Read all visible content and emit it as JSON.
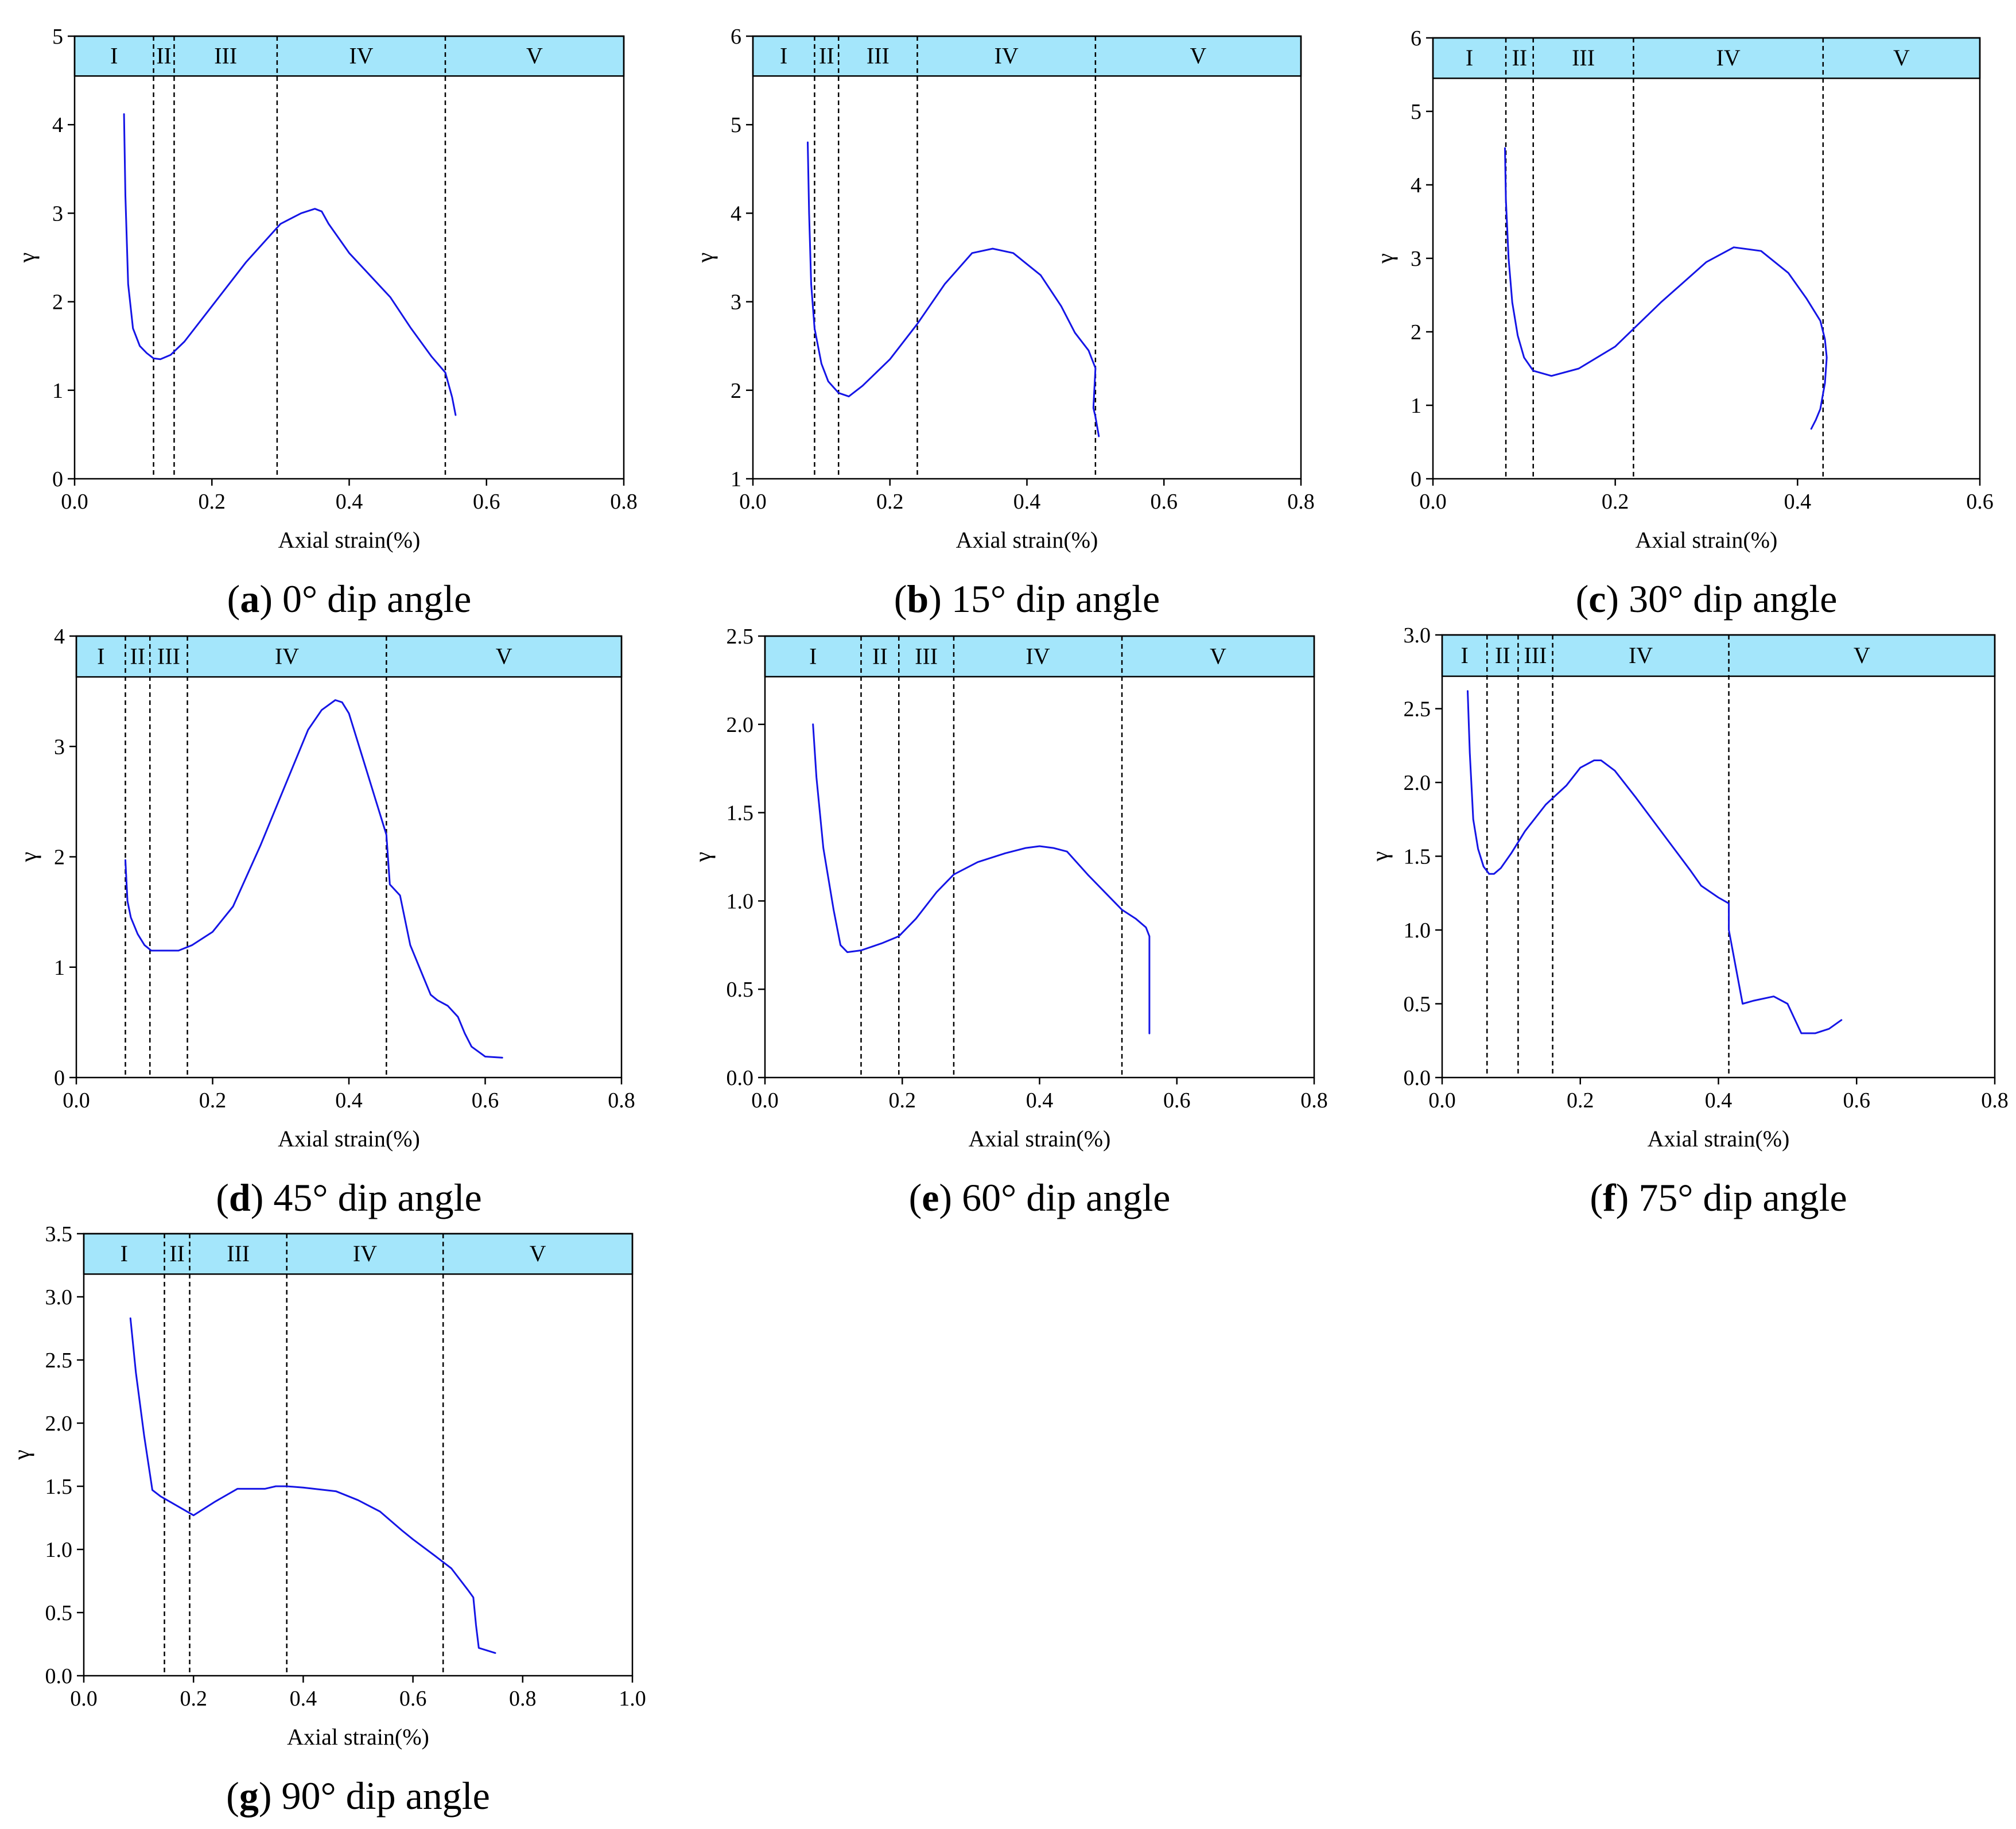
{
  "figure": {
    "line_color": "#1515e6",
    "band_color": "#a4e6fb",
    "stage_labels": [
      "I",
      "II",
      "III",
      "IV",
      "V"
    ]
  },
  "chart_data": [
    {
      "id": "a",
      "type": "line",
      "caption_letter": "a",
      "caption_open": "(",
      "caption_close": ")",
      "caption_text": " 0° dip angle",
      "xlabel": "Axial strain(%)",
      "ylabel": "γ",
      "xlim": [
        0.0,
        0.8
      ],
      "ylim": [
        0,
        5
      ],
      "xticks": [
        0.0,
        0.2,
        0.4,
        0.6,
        0.8
      ],
      "xtick_labels": [
        "0.0",
        "0.2",
        "0.4",
        "0.6",
        "0.8"
      ],
      "yticks": [
        0,
        1,
        2,
        3,
        4,
        5
      ],
      "ytick_labels": [
        "0",
        "1",
        "2",
        "3",
        "4",
        "5"
      ],
      "band_bottom": 4.55,
      "stage_boundaries": [
        0.115,
        0.145,
        0.295,
        0.54
      ],
      "x": [
        0.072,
        0.074,
        0.078,
        0.085,
        0.095,
        0.105,
        0.115,
        0.125,
        0.14,
        0.16,
        0.2,
        0.25,
        0.3,
        0.33,
        0.35,
        0.36,
        0.37,
        0.4,
        0.43,
        0.46,
        0.49,
        0.52,
        0.54,
        0.55,
        0.555
      ],
      "y": [
        4.12,
        3.2,
        2.2,
        1.7,
        1.5,
        1.42,
        1.36,
        1.35,
        1.4,
        1.55,
        1.95,
        2.45,
        2.88,
        3.0,
        3.05,
        3.02,
        2.88,
        2.55,
        2.3,
        2.05,
        1.7,
        1.38,
        1.2,
        0.92,
        0.72
      ]
    },
    {
      "id": "b",
      "type": "line",
      "caption_letter": "b",
      "caption_open": "(",
      "caption_close": ")",
      "caption_text": " 15° dip angle",
      "xlabel": "Axial strain(%)",
      "ylabel": "γ",
      "xlim": [
        0.0,
        0.8
      ],
      "ylim": [
        1,
        6
      ],
      "xticks": [
        0.0,
        0.2,
        0.4,
        0.6,
        0.8
      ],
      "xtick_labels": [
        "0.0",
        "0.2",
        "0.4",
        "0.6",
        "0.8"
      ],
      "yticks": [
        1,
        2,
        3,
        4,
        5,
        6
      ],
      "ytick_labels": [
        "1",
        "2",
        "3",
        "4",
        "5",
        "6"
      ],
      "band_bottom": 5.55,
      "stage_boundaries": [
        0.09,
        0.125,
        0.24,
        0.5
      ],
      "x": [
        0.08,
        0.082,
        0.085,
        0.09,
        0.1,
        0.11,
        0.125,
        0.14,
        0.16,
        0.2,
        0.24,
        0.28,
        0.32,
        0.35,
        0.38,
        0.42,
        0.45,
        0.47,
        0.49,
        0.5,
        0.497,
        0.5,
        0.505
      ],
      "y": [
        4.8,
        4.0,
        3.2,
        2.7,
        2.3,
        2.1,
        1.97,
        1.93,
        2.05,
        2.35,
        2.75,
        3.2,
        3.55,
        3.6,
        3.55,
        3.3,
        2.95,
        2.65,
        2.45,
        2.25,
        1.8,
        1.7,
        1.48
      ]
    },
    {
      "id": "c",
      "type": "line",
      "caption_letter": "c",
      "caption_open": "(",
      "caption_close": ")",
      "caption_text": " 30° dip angle",
      "xlabel": "Axial strain(%)",
      "ylabel": "γ",
      "xlim": [
        0.0,
        0.6
      ],
      "ylim": [
        0,
        6
      ],
      "xticks": [
        0.0,
        0.2,
        0.4,
        0.6
      ],
      "xtick_labels": [
        "0.0",
        "0.2",
        "0.4",
        "0.6"
      ],
      "yticks": [
        0,
        1,
        2,
        3,
        4,
        5,
        6
      ],
      "ytick_labels": [
        "0",
        "1",
        "2",
        "3",
        "4",
        "5",
        "6"
      ],
      "band_bottom": 5.45,
      "stage_boundaries": [
        0.08,
        0.11,
        0.22,
        0.428
      ],
      "x": [
        0.079,
        0.08,
        0.083,
        0.087,
        0.093,
        0.1,
        0.11,
        0.13,
        0.16,
        0.2,
        0.25,
        0.3,
        0.33,
        0.36,
        0.39,
        0.41,
        0.425,
        0.43,
        0.432,
        0.43,
        0.425,
        0.42,
        0.415
      ],
      "y": [
        4.5,
        3.8,
        3.0,
        2.4,
        1.95,
        1.65,
        1.47,
        1.4,
        1.5,
        1.8,
        2.4,
        2.95,
        3.15,
        3.1,
        2.8,
        2.45,
        2.15,
        1.9,
        1.65,
        1.3,
        0.95,
        0.8,
        0.68
      ]
    },
    {
      "id": "d",
      "type": "line",
      "caption_letter": "d",
      "caption_open": "(",
      "caption_close": ")",
      "caption_text": " 45° dip angle",
      "xlabel": "Axial strain(%)",
      "ylabel": "γ",
      "xlim": [
        0.0,
        0.8
      ],
      "ylim": [
        0,
        4
      ],
      "xticks": [
        0.0,
        0.2,
        0.4,
        0.6,
        0.8
      ],
      "xtick_labels": [
        "0.0",
        "0.2",
        "0.4",
        "0.6",
        "0.8"
      ],
      "yticks": [
        0,
        1,
        2,
        3,
        4
      ],
      "ytick_labels": [
        "0",
        "1",
        "2",
        "3",
        "4"
      ],
      "band_bottom": 3.63,
      "stage_boundaries": [
        0.072,
        0.108,
        0.163,
        0.455
      ],
      "x": [
        0.072,
        0.075,
        0.08,
        0.09,
        0.1,
        0.11,
        0.13,
        0.15,
        0.17,
        0.2,
        0.23,
        0.27,
        0.31,
        0.34,
        0.36,
        0.38,
        0.39,
        0.4,
        0.42,
        0.44,
        0.455,
        0.46,
        0.475,
        0.48,
        0.49,
        0.51,
        0.52,
        0.53,
        0.545,
        0.56,
        0.57,
        0.58,
        0.6,
        0.625
      ],
      "y": [
        1.97,
        1.6,
        1.45,
        1.3,
        1.2,
        1.15,
        1.15,
        1.15,
        1.2,
        1.32,
        1.55,
        2.1,
        2.7,
        3.15,
        3.33,
        3.42,
        3.4,
        3.3,
        2.9,
        2.5,
        2.2,
        1.75,
        1.65,
        1.5,
        1.2,
        0.9,
        0.75,
        0.7,
        0.65,
        0.55,
        0.4,
        0.28,
        0.19,
        0.18
      ]
    },
    {
      "id": "e",
      "type": "line",
      "caption_letter": "e",
      "caption_open": "(",
      "caption_close": ")",
      "caption_text": " 60° dip angle",
      "xlabel": "Axial strain(%)",
      "ylabel": "γ",
      "xlim": [
        0.0,
        0.8
      ],
      "ylim": [
        0.0,
        2.5
      ],
      "xticks": [
        0.0,
        0.2,
        0.4,
        0.6,
        0.8
      ],
      "xtick_labels": [
        "0.0",
        "0.2",
        "0.4",
        "0.6",
        "0.8"
      ],
      "yticks": [
        0.0,
        0.5,
        1.0,
        1.5,
        2.0,
        2.5
      ],
      "ytick_labels": [
        "0.0",
        "0.5",
        "1.0",
        "1.5",
        "2.0",
        "2.5"
      ],
      "band_bottom": 2.27,
      "stage_boundaries": [
        0.14,
        0.195,
        0.275,
        0.52
      ],
      "x": [
        0.07,
        0.075,
        0.085,
        0.1,
        0.11,
        0.12,
        0.14,
        0.17,
        0.195,
        0.22,
        0.25,
        0.275,
        0.31,
        0.35,
        0.38,
        0.4,
        0.42,
        0.44,
        0.47,
        0.5,
        0.52,
        0.54,
        0.555,
        0.56,
        0.56,
        0.56
      ],
      "y": [
        2.0,
        1.7,
        1.3,
        0.95,
        0.75,
        0.71,
        0.72,
        0.76,
        0.8,
        0.9,
        1.05,
        1.15,
        1.22,
        1.27,
        1.3,
        1.31,
        1.3,
        1.28,
        1.15,
        1.03,
        0.95,
        0.9,
        0.85,
        0.8,
        0.5,
        0.25
      ]
    },
    {
      "id": "f",
      "type": "line",
      "caption_letter": "f",
      "caption_open": "(",
      "caption_close": ")",
      "caption_text": " 75° dip angle",
      "xlabel": "Axial strain(%)",
      "ylabel": "γ",
      "xlim": [
        0.0,
        0.8
      ],
      "ylim": [
        0.0,
        3.0
      ],
      "xticks": [
        0.0,
        0.2,
        0.4,
        0.6,
        0.8
      ],
      "xtick_labels": [
        "0.0",
        "0.2",
        "0.4",
        "0.6",
        "0.8"
      ],
      "yticks": [
        0.0,
        0.5,
        1.0,
        1.5,
        2.0,
        2.5,
        3.0
      ],
      "ytick_labels": [
        "0.0",
        "0.5",
        "1.0",
        "1.5",
        "2.0",
        "2.5",
        "3.0"
      ],
      "band_bottom": 2.72,
      "stage_boundaries": [
        0.065,
        0.11,
        0.16,
        0.415
      ],
      "x": [
        0.037,
        0.04,
        0.045,
        0.052,
        0.06,
        0.068,
        0.075,
        0.085,
        0.1,
        0.12,
        0.15,
        0.18,
        0.2,
        0.22,
        0.23,
        0.25,
        0.28,
        0.32,
        0.36,
        0.375,
        0.4,
        0.415,
        0.415,
        0.425,
        0.435,
        0.45,
        0.48,
        0.5,
        0.51,
        0.52,
        0.54,
        0.56,
        0.578
      ],
      "y": [
        2.62,
        2.2,
        1.75,
        1.55,
        1.43,
        1.38,
        1.38,
        1.42,
        1.52,
        1.67,
        1.85,
        1.98,
        2.1,
        2.15,
        2.15,
        2.08,
        1.9,
        1.65,
        1.4,
        1.3,
        1.22,
        1.18,
        1.0,
        0.75,
        0.5,
        0.52,
        0.55,
        0.5,
        0.4,
        0.3,
        0.3,
        0.33,
        0.39
      ]
    },
    {
      "id": "g",
      "type": "line",
      "caption_letter": "g",
      "caption_open": "(",
      "caption_close": ")",
      "caption_text": " 90° dip angle",
      "xlabel": "Axial strain(%)",
      "ylabel": "γ",
      "xlim": [
        0.0,
        1.0
      ],
      "ylim": [
        0.0,
        3.5
      ],
      "xticks": [
        0.0,
        0.2,
        0.4,
        0.6,
        0.8,
        1.0
      ],
      "xtick_labels": [
        "0.0",
        "0.2",
        "0.4",
        "0.6",
        "0.8",
        "1.0"
      ],
      "yticks": [
        0.0,
        0.5,
        1.0,
        1.5,
        2.0,
        2.5,
        3.0,
        3.5
      ],
      "ytick_labels": [
        "0.0",
        "0.5",
        "1.0",
        "1.5",
        "2.0",
        "2.5",
        "3.0",
        "3.5"
      ],
      "band_bottom": 3.18,
      "stage_boundaries": [
        0.147,
        0.193,
        0.37,
        0.655
      ],
      "x": [
        0.085,
        0.095,
        0.11,
        0.125,
        0.14,
        0.16,
        0.2,
        0.24,
        0.28,
        0.3,
        0.33,
        0.35,
        0.37,
        0.4,
        0.46,
        0.5,
        0.54,
        0.58,
        0.6,
        0.64,
        0.67,
        0.7,
        0.71,
        0.715,
        0.72,
        0.75
      ],
      "y": [
        2.83,
        2.4,
        1.9,
        1.47,
        1.42,
        1.37,
        1.27,
        1.38,
        1.48,
        1.48,
        1.48,
        1.5,
        1.5,
        1.49,
        1.46,
        1.39,
        1.3,
        1.15,
        1.08,
        0.95,
        0.85,
        0.68,
        0.62,
        0.4,
        0.22,
        0.18
      ]
    }
  ]
}
